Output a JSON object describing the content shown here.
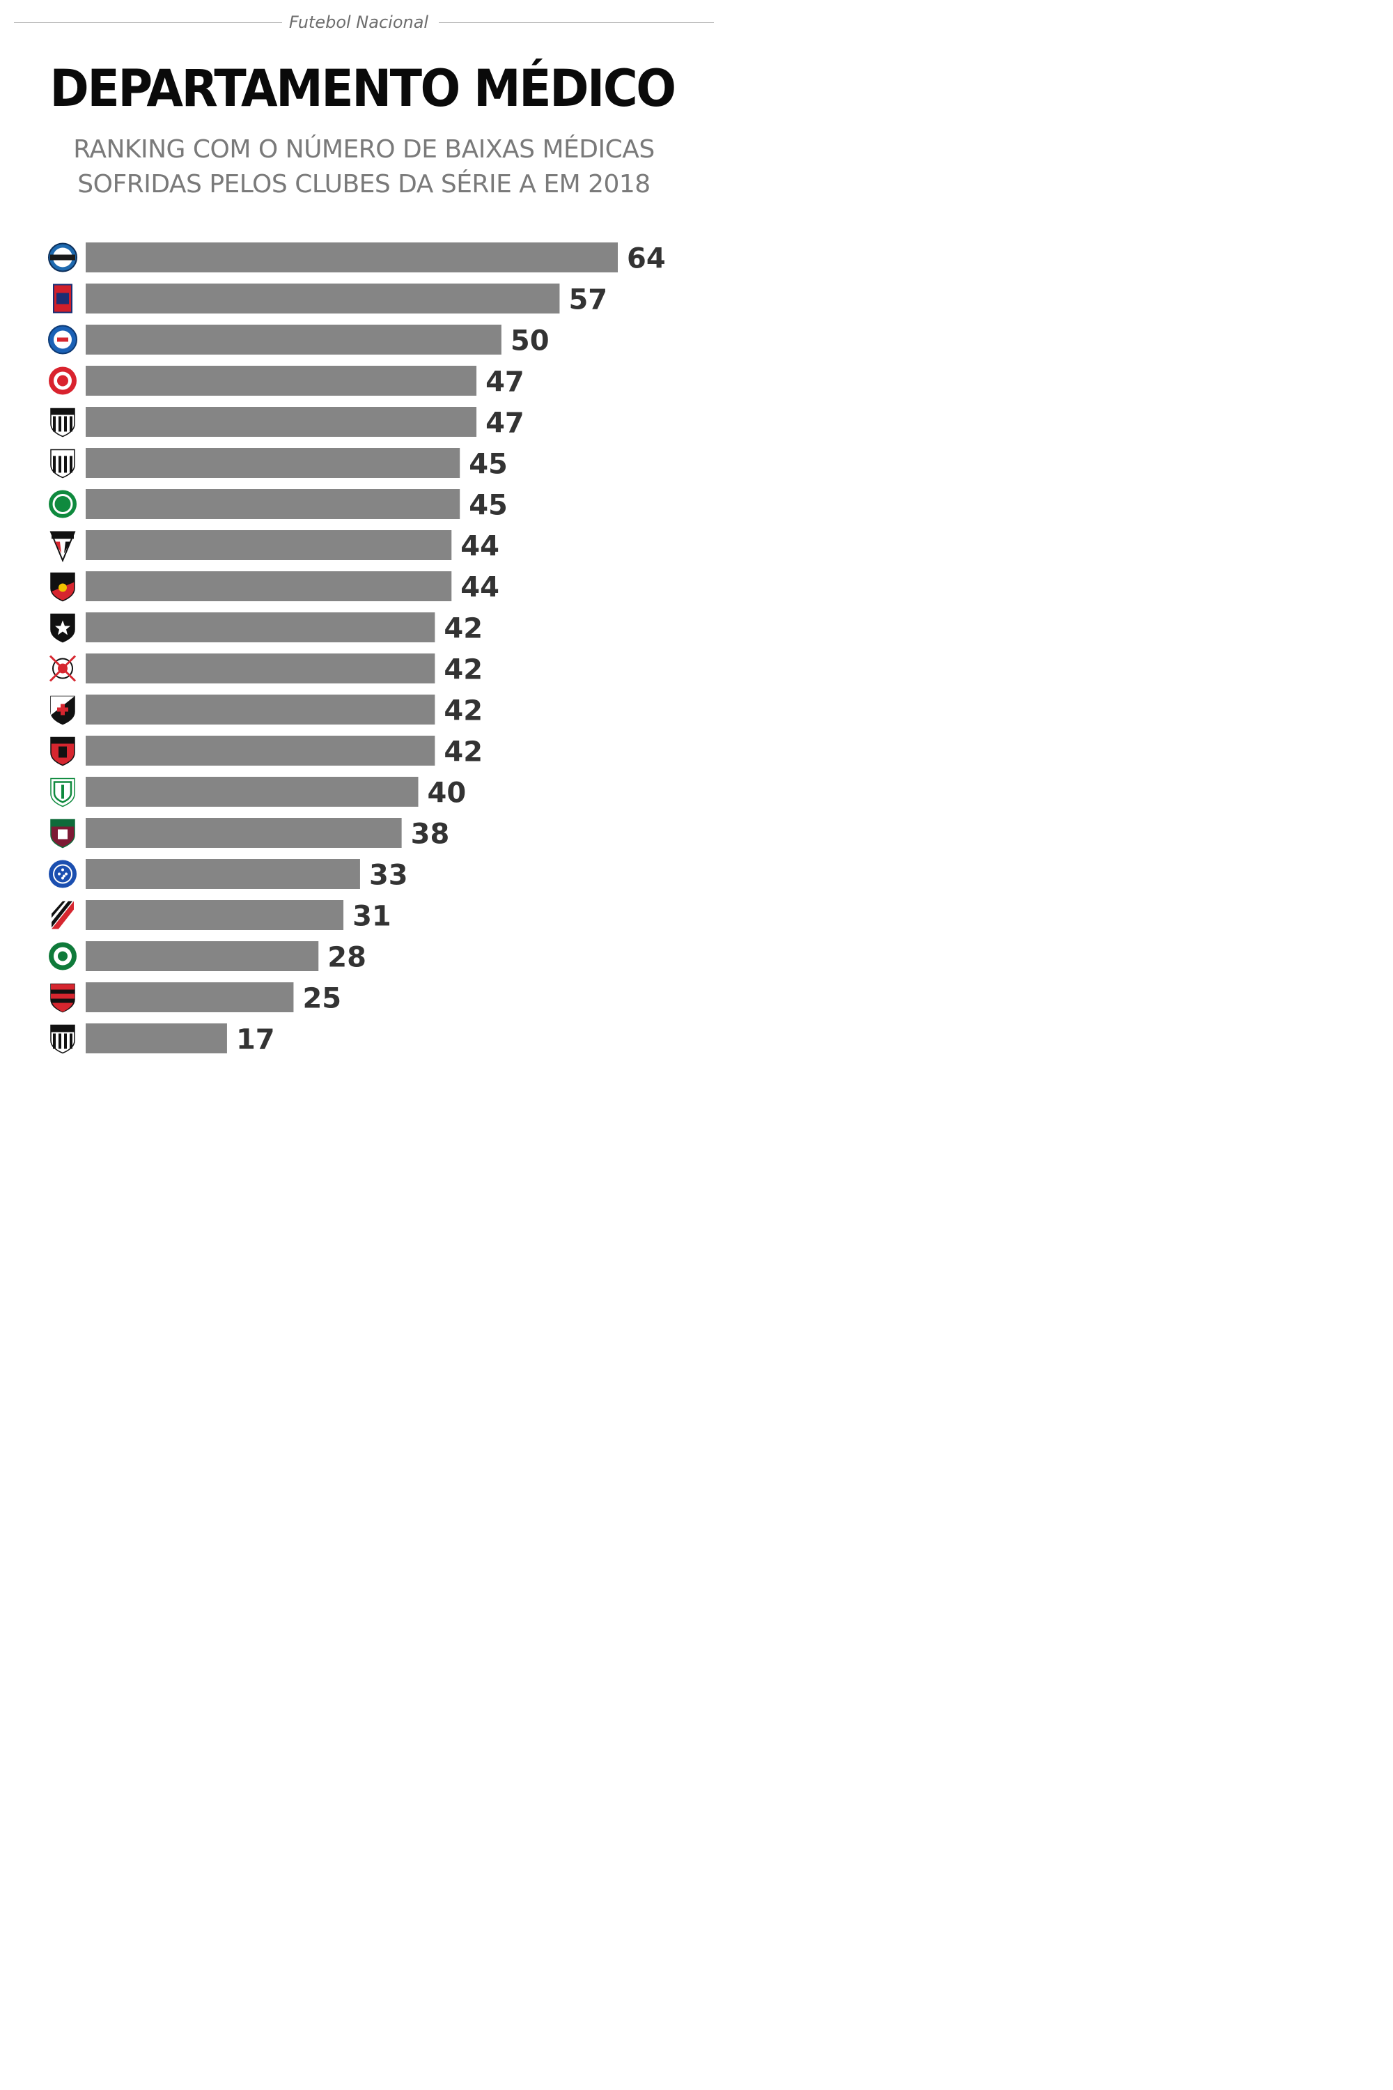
{
  "header": {
    "section": "Futebol Nacional",
    "title": "DEPARTAMENTO MÉDICO",
    "subtitle_line1": "RANKING COM O NÚMERO DE BAIXAS MÉDICAS",
    "subtitle_line2": "SOFRIDAS PELOS CLUBES DA SÉRIE A EM 2018"
  },
  "colors": {
    "bar": "#858585",
    "value_text": "#333333"
  },
  "chart_data": {
    "type": "bar",
    "orientation": "horizontal",
    "title": "DEPARTAMENTO MÉDICO",
    "categories": [
      "gremio-crest",
      "parana-crest",
      "bahia-crest",
      "internacional-crest",
      "santos-crest",
      "ceara-crest",
      "chapecoense-crest",
      "sao-paulo-crest",
      "sport-crest",
      "botafogo-crest",
      "corinthians-crest",
      "vasco-crest",
      "vitoria-crest",
      "america-mg-crest",
      "fluminense-crest",
      "cruzeiro-crest",
      "atletico-pr-crest",
      "palmeiras-crest",
      "flamengo-crest",
      "atletico-mg-crest"
    ],
    "values": [
      64,
      57,
      50,
      47,
      47,
      45,
      45,
      44,
      44,
      42,
      42,
      42,
      42,
      40,
      38,
      33,
      31,
      28,
      25,
      17
    ],
    "xlim": [
      0,
      64
    ],
    "grid": false,
    "legend": "none"
  }
}
